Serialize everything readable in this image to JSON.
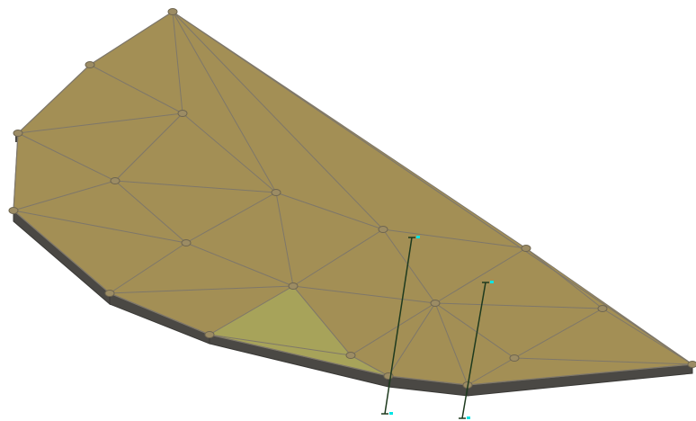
{
  "viewport": {
    "background": "#ffffff"
  },
  "mesh": {
    "surface_color": "#a38f55",
    "edge_color": "#7e776a",
    "side_color": "#4a4844",
    "side_shadow_color": "#3a3936",
    "node_color": "#9c8c64",
    "selected_face_color": "#a7a35a",
    "node_icon": "mesh-node-icon"
  },
  "pins": {
    "line_color": "#1e3a1e",
    "marker_color": "#00e5e5",
    "items": [
      {
        "id": "pin-left",
        "icon": "vertical-pin-icon"
      },
      {
        "id": "pin-right",
        "icon": "vertical-pin-icon"
      }
    ]
  }
}
